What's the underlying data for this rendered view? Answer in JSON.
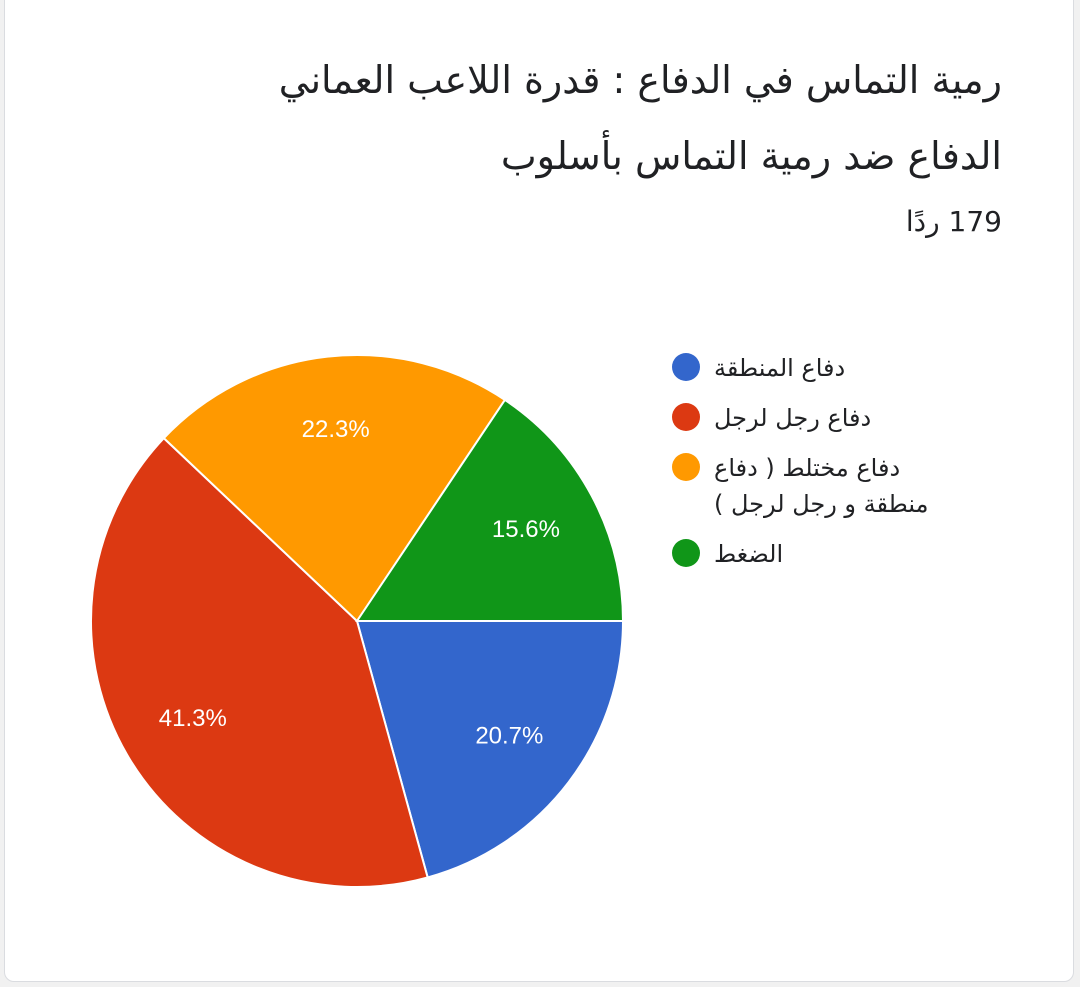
{
  "chart_data": {
    "type": "pie",
    "title": "رمية التماس في الدفاع : قدرة اللاعب العماني الدفاع ضد رمية التماس بأسلوب",
    "subtitle": "179 ردًا",
    "categories": [
      "دفاع المنطقة",
      "دفاع رجل لرجل",
      "دفاع مختلط ( دفاع منطقة و رجل لرجل )",
      "الضغط"
    ],
    "values": [
      20.7,
      41.3,
      22.3,
      15.6
    ],
    "value_labels": [
      "20.7%",
      "41.3%",
      "22.3%",
      "15.6%"
    ],
    "colors": [
      "#3366cc",
      "#dc3912",
      "#ff9900",
      "#109618"
    ]
  }
}
